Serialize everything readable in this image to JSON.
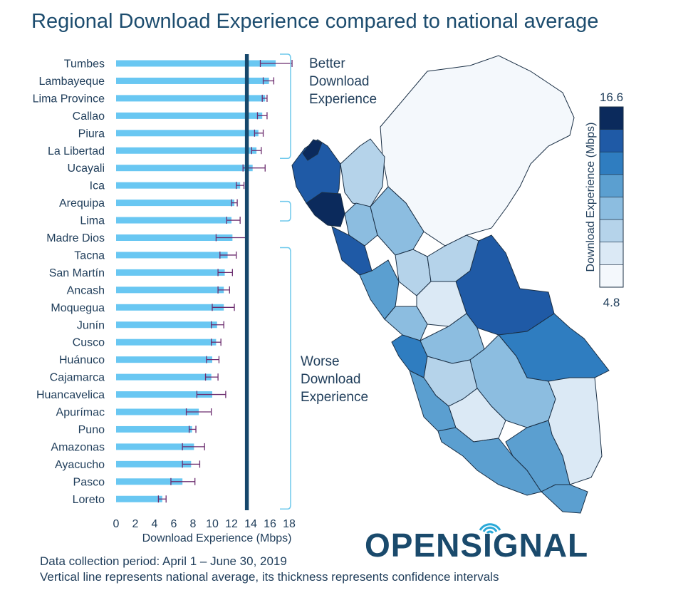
{
  "title": "Regional Download Experience compared to national average",
  "chart_data": {
    "type": "bar",
    "orientation": "horizontal",
    "title": "Regional Download Experience compared to national average",
    "xlabel": "Download Experience (Mbps)",
    "ylabel": "",
    "xlim": [
      0,
      18
    ],
    "xticks": [
      0,
      2,
      4,
      6,
      8,
      10,
      12,
      14,
      16,
      18
    ],
    "national_average": 13.6,
    "national_average_ci": [
      13.4,
      13.8
    ],
    "categories": [
      "Tumbes",
      "Lambayeque",
      "Lima Province",
      "Callao",
      "Piura",
      "La Libertad",
      "Ucayali",
      "Ica",
      "Arequipa",
      "Lima",
      "Madre Dios",
      "Tacna",
      "San Martín",
      "Ancash",
      "Moquegua",
      "Junín",
      "Cusco",
      "Huánuco",
      "Cajamarca",
      "Huancavelica",
      "Apurímac",
      "Puno",
      "Amazonas",
      "Ayacucho",
      "Pasco",
      "Loreto"
    ],
    "values": [
      16.6,
      15.9,
      15.5,
      15.2,
      14.8,
      14.6,
      14.2,
      12.9,
      12.3,
      12.0,
      12.1,
      11.6,
      11.3,
      11.2,
      11.2,
      10.5,
      10.4,
      10.0,
      9.9,
      10.0,
      8.6,
      7.9,
      8.1,
      7.8,
      6.9,
      4.8
    ],
    "error_low": [
      15.0,
      15.3,
      15.2,
      14.7,
      14.4,
      14.1,
      13.2,
      12.5,
      12.0,
      11.5,
      10.4,
      10.8,
      10.6,
      10.6,
      10.0,
      9.9,
      9.9,
      9.4,
      9.3,
      8.4,
      7.3,
      7.6,
      6.9,
      6.9,
      5.7,
      4.4
    ],
    "error_high": [
      18.3,
      16.4,
      15.7,
      15.7,
      15.3,
      15.1,
      15.5,
      13.3,
      12.6,
      12.9,
      13.7,
      12.5,
      12.1,
      11.8,
      12.3,
      11.2,
      10.9,
      10.7,
      10.6,
      11.4,
      9.9,
      8.3,
      9.2,
      8.7,
      8.2,
      5.2
    ],
    "annotations": [
      "Better Download Experience",
      "Worse Download Experience"
    ],
    "legend": {
      "title": "Download Experience (Mbps)",
      "max_label": "16.6",
      "min_label": "4.8",
      "colors": [
        "#0b2a5c",
        "#1f5aa6",
        "#2f7dc0",
        "#5b9fd0",
        "#8cbde0",
        "#b5d3ea",
        "#dbe9f5",
        "#f4f8fc"
      ]
    }
  },
  "footer": {
    "line1": "Data collection period: April 1 – June 30, 2019",
    "line2": "Vertical line represents national average, its thickness represents confidence intervals"
  },
  "brand": {
    "name": "OPENSIGNAL",
    "text_color": "#1a4a6c",
    "accent": "#2aa9d8"
  },
  "colors": {
    "bar": "#69c7f2",
    "avg_line": "#16476b",
    "bracket": "#6fc9ec",
    "error": "#6b2c6e"
  }
}
